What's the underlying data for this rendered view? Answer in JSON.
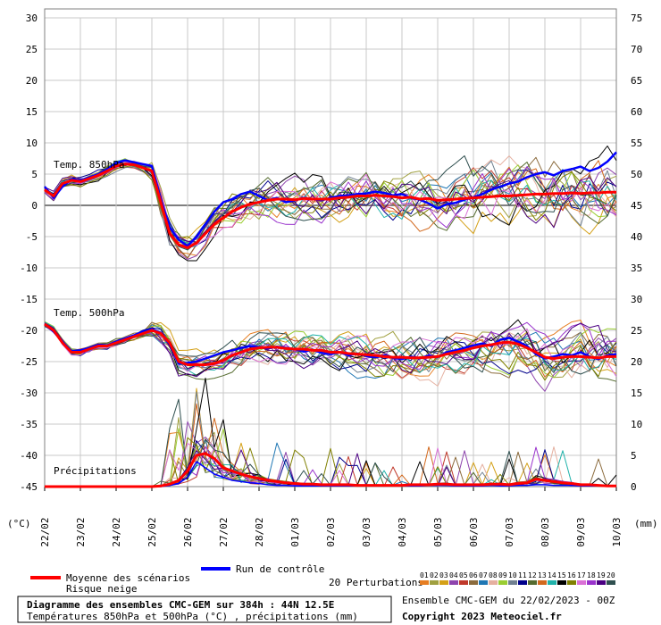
{
  "chart_data": {
    "type": "line",
    "title": "Diagramme des ensembles CMC-GEM sur 384h : 44N 12.5E",
    "subtitle": "Températures 850hPa et 500hPa (°C) , précipitations (mm)",
    "left_unit": "(°C)",
    "right_unit": "(mm)",
    "left_ticks": [
      30,
      25,
      20,
      15,
      10,
      5,
      0,
      -5,
      -10,
      -15,
      -20,
      -25,
      -30,
      -35,
      -40,
      -45
    ],
    "right_ticks": [
      75,
      70,
      65,
      60,
      55,
      50,
      45,
      40,
      35,
      30,
      25,
      20,
      15,
      10,
      5,
      0
    ],
    "ylim": [
      -45,
      30
    ],
    "ylim_right": [
      0,
      75
    ],
    "dates": [
      "22/02",
      "23/02",
      "24/02",
      "25/02",
      "26/02",
      "27/02",
      "28/02",
      "01/03",
      "02/03",
      "03/03",
      "04/03",
      "05/03",
      "06/03",
      "07/03",
      "08/03",
      "09/03",
      "10/03"
    ],
    "x_step_hours": 6,
    "panel_labels": {
      "t850": "Temp. 850hPa",
      "t500": "Temp. 500hPa",
      "precip": "Précipitations"
    },
    "series": [
      {
        "name": "Moyenne des scénarios",
        "color": "#ff0000",
        "t850": [
          2.5,
          1.5,
          3.5,
          4.0,
          3.8,
          4.3,
          4.8,
          5.5,
          6.3,
          6.6,
          6.5,
          6.0,
          5.5,
          0.5,
          -4.5,
          -6.3,
          -6.8,
          -6.0,
          -4.5,
          -3.0,
          -2.0,
          -1.0,
          -0.3,
          0.2,
          0.5,
          0.8,
          1.0,
          1.0,
          0.9,
          1.1,
          1.0,
          1.0,
          1.0,
          1.2,
          1.3,
          1.5,
          1.5,
          1.6,
          1.5,
          1.4,
          1.2,
          1.3,
          1.0,
          1.1,
          0.8,
          0.9,
          1.0,
          1.1,
          1.2,
          1.3,
          1.4,
          1.5,
          1.5,
          1.6,
          1.7,
          1.8,
          1.8,
          1.9,
          1.9,
          2.0,
          1.9,
          2.0,
          2.0,
          2.1,
          2.1
        ],
        "t500": [
          -19,
          -20,
          -22,
          -23.5,
          -23.5,
          -23,
          -22.5,
          -22.5,
          -22,
          -21.5,
          -21,
          -20.5,
          -20,
          -20.5,
          -22,
          -25,
          -25.5,
          -25.5,
          -25.5,
          -25.3,
          -24.8,
          -24,
          -23.5,
          -23,
          -22.8,
          -22.7,
          -22.7,
          -22.9,
          -23,
          -23,
          -23.2,
          -23.2,
          -23.5,
          -23.5,
          -23.7,
          -23.8,
          -23.9,
          -24,
          -24.2,
          -24.3,
          -24.3,
          -24.4,
          -24.4,
          -24.3,
          -24.2,
          -23.8,
          -23.5,
          -23.2,
          -22.8,
          -22.5,
          -22.3,
          -22,
          -21.9,
          -22.2,
          -22.8,
          -23.5,
          -24.3,
          -24.5,
          -24.3,
          -24.2,
          -24.2,
          -24.3,
          -24.4,
          -24.2,
          -24.2
        ],
        "precip": [
          0,
          0,
          0,
          0,
          0,
          0,
          0,
          0,
          0,
          0,
          0,
          0,
          0,
          0.1,
          0.4,
          1.0,
          2.5,
          5.0,
          5.3,
          4.5,
          3.0,
          2.5,
          2.0,
          1.6,
          1.3,
          1.0,
          0.8,
          0.6,
          0.5,
          0.4,
          0.4,
          0.3,
          0.3,
          0.3,
          0.3,
          0.2,
          0.2,
          0.2,
          0.2,
          0.2,
          0.2,
          0.3,
          0.3,
          0.3,
          0.4,
          0.4,
          0.3,
          0.3,
          0.3,
          0.3,
          0.4,
          0.4,
          0.3,
          0.5,
          0.6,
          1.2,
          1.0,
          0.8,
          0.6,
          0.5,
          0.3,
          0.3,
          0.2,
          0.1,
          0.1
        ]
      },
      {
        "name": "Run de contrôle",
        "color": "#0000ff",
        "t850": [
          3.0,
          1.2,
          3.0,
          4.2,
          4.0,
          4.5,
          5.0,
          5.8,
          6.8,
          7.2,
          6.9,
          6.6,
          6.3,
          1.0,
          -3.5,
          -5.5,
          -6.5,
          -5.0,
          -3.0,
          -1.0,
          0.5,
          1.0,
          1.8,
          2.2,
          1.5,
          0.8,
          1.2,
          0.5,
          0.8,
          1.2,
          1.0,
          0.8,
          1.2,
          1.5,
          1.6,
          1.8,
          1.9,
          2.2,
          2.0,
          1.6,
          1.8,
          1.2,
          0.9,
          0.3,
          -0.5,
          0.2,
          0.4,
          0.9,
          1.3,
          1.8,
          2.5,
          3.0,
          3.5,
          3.8,
          4.5,
          5.0,
          5.3,
          4.8,
          5.5,
          5.8,
          6.2,
          5.5,
          6.0,
          7.0,
          8.5
        ],
        "t500": [
          -19,
          -20.2,
          -21.8,
          -23.3,
          -23.2,
          -22.8,
          -22.3,
          -22.4,
          -21.8,
          -21.3,
          -20.8,
          -20.2,
          -19.8,
          -20.4,
          -22.3,
          -25.3,
          -25.2,
          -25,
          -24.5,
          -24,
          -23.5,
          -23.2,
          -22.8,
          -22.5,
          -22.7,
          -22.9,
          -22.6,
          -22.8,
          -23,
          -23.4,
          -23.1,
          -23.6,
          -23.8,
          -23.5,
          -24,
          -23.7,
          -24.1,
          -24.3,
          -24,
          -24.4,
          -24.6,
          -24.2,
          -24.5,
          -24,
          -24.3,
          -23.5,
          -23.2,
          -22.8,
          -22.4,
          -22.1,
          -22.5,
          -21.5,
          -21.2,
          -21.8,
          -22.5,
          -23.8,
          -24.5,
          -24.2,
          -23.8,
          -24.0,
          -23.5,
          -24.2,
          -24.6,
          -24.0,
          -23.8
        ],
        "precip": [
          0,
          0,
          0,
          0,
          0,
          0,
          0,
          0,
          0,
          0,
          0,
          0,
          0,
          0,
          0.2,
          0.5,
          1.5,
          4.0,
          3.0,
          2.0,
          1.5,
          1.0,
          0.8,
          0.6,
          0.5,
          0.3,
          0.2,
          0.2,
          0.1,
          0.1,
          0.1,
          0.1,
          0.1,
          0.1,
          0.1,
          0.1,
          0.1,
          0.1,
          0.1,
          0.1,
          0.1,
          0.1,
          0.1,
          0.2,
          0.2,
          0.2,
          0.1,
          0.1,
          0.1,
          0.1,
          0.2,
          0.1,
          0.1,
          0.2,
          0.2,
          0.3,
          0.3,
          0.2,
          0.2,
          0.2,
          0.1,
          0.1,
          0.1,
          0.1,
          0.1
        ]
      }
    ]
  },
  "legend": {
    "mean_label": "Moyenne des scénarios",
    "snow_label": "Risque neige",
    "control_label": "Run de contrôle",
    "perturb_label": "20 Perturbations",
    "perturb_numbers": [
      "01",
      "02",
      "03",
      "04",
      "05",
      "06",
      "07",
      "08",
      "09",
      "10",
      "11",
      "12",
      "13",
      "14",
      "15",
      "16",
      "17",
      "18",
      "19",
      "20"
    ],
    "perturb_colors": [
      "#e67e22",
      "#a0a040",
      "#d4a017",
      "#8e44ad",
      "#c0392b",
      "#8b6b3d",
      "#1f77b4",
      "#e5b0a0",
      "#9acd32",
      "#708090",
      "#00008b",
      "#556b2f",
      "#d2691e",
      "#20b2aa",
      "#000000",
      "#808000",
      "#da70d6",
      "#9932cc",
      "#4b0082",
      "#2f4f4f"
    ]
  },
  "footer": {
    "run_info": "Ensemble CMC-GEM du 22/02/2023 - 00Z",
    "copyright": "Copyright 2023 Meteociel.fr"
  },
  "colors": {
    "grid": "#c8c8c8",
    "zero_line": "#808080",
    "mean": "#ff0000",
    "control": "#0000ff"
  }
}
